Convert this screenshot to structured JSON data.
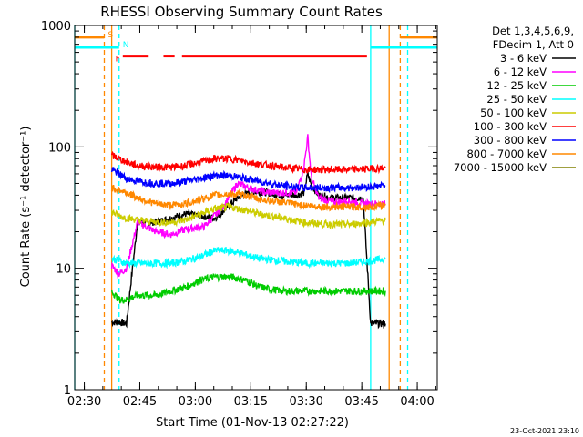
{
  "chart_data": {
    "type": "line",
    "title": "RHESSI Observing Summary Count Rates",
    "xlabel": "Start Time (01-Nov-13 02:27:22)",
    "ylabel": "Count Rate (s⁻¹ detector⁻¹)",
    "x_unit": "minutes after 02:27:22",
    "xlim": [
      0,
      98
    ],
    "ylim": [
      1,
      1000
    ],
    "yscale": "log",
    "x_ticks": [
      {
        "label": "02:30",
        "x": 2.6
      },
      {
        "label": "02:45",
        "x": 17.6
      },
      {
        "label": "03:00",
        "x": 32.6
      },
      {
        "label": "03:15",
        "x": 47.6
      },
      {
        "label": "03:30",
        "x": 62.6
      },
      {
        "label": "03:45",
        "x": 77.6
      },
      {
        "label": "04:00",
        "x": 92.6
      }
    ],
    "y_ticks": [
      {
        "label": "1",
        "y": 1
      },
      {
        "label": "10",
        "y": 10
      },
      {
        "label": "100",
        "y": 100
      },
      {
        "label": "1000",
        "y": 1000
      }
    ],
    "legend": {
      "position": "right",
      "header": [
        "Det 1,3,4,5,6,9,",
        "FDecim 1, Att 0"
      ]
    },
    "series": [
      {
        "name": "3 - 6 keV",
        "color": "#000000",
        "x": [
          10,
          12,
          14,
          17,
          22,
          30,
          38,
          44,
          48,
          52,
          56,
          60,
          62,
          63,
          64,
          66,
          70,
          74,
          78,
          80,
          82,
          84
        ],
        "y": [
          3.6,
          3.6,
          3.5,
          24,
          24,
          28,
          26,
          38,
          43,
          42,
          40,
          40,
          42,
          60,
          48,
          40,
          38,
          38,
          38,
          3.5,
          3.5,
          3.5
        ]
      },
      {
        "name": "6 - 12 keV",
        "color": "#ff00ff",
        "x": [
          10,
          12,
          14,
          17,
          22,
          26,
          30,
          35,
          40,
          44,
          48,
          52,
          56,
          60,
          62,
          63,
          64,
          66,
          70,
          74,
          78,
          80,
          82,
          84
        ],
        "y": [
          10.5,
          9,
          10,
          24,
          20,
          19,
          21,
          22,
          32,
          50,
          45,
          42,
          42,
          42,
          70,
          120,
          55,
          38,
          35,
          36,
          34,
          34,
          34,
          34
        ]
      },
      {
        "name": "12 - 25 keV",
        "color": "#00cc00",
        "x": [
          10,
          12,
          14,
          17,
          22,
          26,
          30,
          34,
          38,
          42,
          46,
          50,
          56,
          62,
          68,
          74,
          80,
          84
        ],
        "y": [
          6.5,
          5.5,
          5.5,
          6,
          6,
          6.5,
          7,
          8,
          8.5,
          8.5,
          8,
          7,
          6.5,
          6.5,
          6.5,
          6.5,
          6.5,
          6.5
        ]
      },
      {
        "name": "25 - 50 keV",
        "color": "#00ffff",
        "x": [
          10,
          12,
          14,
          17,
          22,
          26,
          30,
          34,
          38,
          42,
          46,
          50,
          56,
          62,
          68,
          74,
          80,
          84
        ],
        "y": [
          12,
          11.5,
          11,
          11,
          11,
          11,
          11.5,
          12.5,
          14,
          14,
          13,
          12,
          11.5,
          11,
          11,
          11,
          11.5,
          12
        ]
      },
      {
        "name": "50 - 100 keV",
        "color": "#cccc00",
        "x": [
          10,
          12,
          14,
          17,
          22,
          26,
          30,
          34,
          38,
          42,
          46,
          50,
          56,
          62,
          68,
          74,
          80,
          84
        ],
        "y": [
          29,
          27,
          26,
          25,
          24,
          24,
          25,
          28,
          31,
          32,
          30,
          28,
          26,
          24,
          23,
          23,
          24,
          25
        ]
      },
      {
        "name": "100 - 300 keV",
        "color": "#ff0000",
        "x": [
          10,
          12,
          14,
          17,
          22,
          26,
          30,
          34,
          38,
          42,
          46,
          50,
          56,
          62,
          68,
          74,
          80,
          84
        ],
        "y": [
          85,
          80,
          75,
          70,
          68,
          68,
          70,
          75,
          80,
          80,
          76,
          72,
          68,
          65,
          65,
          65,
          66,
          67
        ]
      },
      {
        "name": "300 - 800 keV",
        "color": "#0000ff",
        "x": [
          10,
          12,
          14,
          17,
          22,
          26,
          30,
          34,
          38,
          42,
          46,
          50,
          56,
          62,
          68,
          74,
          80,
          84
        ],
        "y": [
          65,
          60,
          55,
          52,
          50,
          50,
          52,
          55,
          58,
          58,
          55,
          52,
          48,
          46,
          46,
          46,
          47,
          48
        ]
      },
      {
        "name": "800 - 7000 keV",
        "color": "#ff8800",
        "x": [
          10,
          12,
          14,
          17,
          22,
          26,
          30,
          34,
          38,
          42,
          46,
          50,
          56,
          62,
          68,
          74,
          80,
          84
        ],
        "y": [
          46,
          44,
          42,
          38,
          34,
          33,
          34,
          37,
          40,
          41,
          40,
          37,
          35,
          33,
          32,
          32,
          32,
          33
        ]
      },
      {
        "name": "7000 - 15000 keV",
        "color": "#808000",
        "x": [],
        "y": []
      }
    ],
    "flags": [
      {
        "label": "S",
        "color": "#ff8800",
        "y": 800,
        "x_ranges": [
          [
            0,
            8
          ],
          [
            88,
            98
          ]
        ]
      },
      {
        "label": "N",
        "color": "#00ffff",
        "y": 660,
        "x_ranges": [
          [
            0,
            12
          ],
          [
            80,
            98
          ]
        ]
      },
      {
        "label": "F",
        "color": "#ff0000",
        "y": 560,
        "x_ranges": [
          [
            13,
            20
          ],
          [
            24,
            27
          ],
          [
            29,
            79
          ]
        ]
      }
    ],
    "vertical_lines": [
      {
        "x": 0,
        "color": "#00ffff",
        "style": "solid"
      },
      {
        "x": 8,
        "color": "#ff8800",
        "style": "dashed"
      },
      {
        "x": 10,
        "color": "#ff8800",
        "style": "solid"
      },
      {
        "x": 12,
        "color": "#00ffff",
        "style": "dashed"
      },
      {
        "x": 80,
        "color": "#00ffff",
        "style": "solid"
      },
      {
        "x": 85,
        "color": "#ff8800",
        "style": "solid"
      },
      {
        "x": 88,
        "color": "#ff8800",
        "style": "dashed"
      },
      {
        "x": 90,
        "color": "#00ffff",
        "style": "dashed"
      }
    ],
    "footer": "23-Oct-2021 23:10"
  }
}
